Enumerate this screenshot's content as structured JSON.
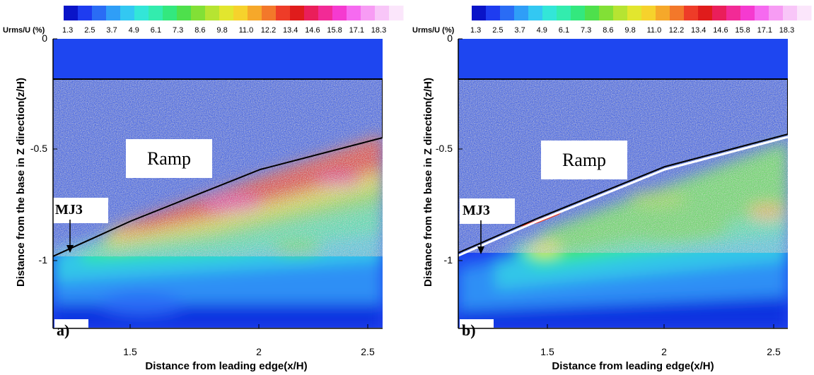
{
  "colorbar": {
    "label": "Urms/U (%)",
    "ticks": [
      "1.3",
      "2.5",
      "3.7",
      "4.9",
      "6.1",
      "7.3",
      "8.6",
      "9.8",
      "11.0",
      "12.2",
      "13.4",
      "14.6",
      "15.8",
      "17.1",
      "18.3"
    ],
    "colors": [
      "#0a14c8",
      "#1e3cf0",
      "#2a6cf5",
      "#2f9ef7",
      "#33c8f2",
      "#33e6d8",
      "#33ecae",
      "#33e87e",
      "#4ee04c",
      "#82e036",
      "#b6e432",
      "#e2e62e",
      "#f6d22c",
      "#f6a82a",
      "#f3782a",
      "#ee3c28",
      "#e01c1c",
      "#ea1e5a",
      "#f22a96",
      "#f53ad0",
      "#f66af0",
      "#f79cf4",
      "#f8c6f8",
      "#fbe6fb"
    ]
  },
  "panels": [
    {
      "tag": "a)",
      "ramp_label": "Ramp",
      "marker_label": "MJ3"
    },
    {
      "tag": "b)",
      "ramp_label": "Ramp",
      "marker_label": "MJ3"
    }
  ],
  "chart_data": [
    {
      "type": "heatmap",
      "quantity": "Urms/U (%)",
      "xlabel": "Distance from leading edge(x/H)",
      "ylabel": "Distance from the base in Z direction(z/H)",
      "xlim": [
        1.1,
        2.55
      ],
      "ylim": [
        -1.4,
        0
      ],
      "xticks": [
        "1.5",
        "2",
        "2.5"
      ],
      "yticks": [
        "0",
        "-0.5",
        "-1"
      ],
      "clim": [
        1.3,
        18.3
      ],
      "ramp_surface": {
        "x": [
          1.1,
          1.5,
          2.0,
          2.55
        ],
        "z": [
          -0.98,
          -0.8,
          -0.58,
          -0.44
        ]
      },
      "annotations": [
        "Ramp",
        "MJ3",
        "a)"
      ],
      "features": {
        "shear_layer_peak": 15.8,
        "shear_layer_z_below_surface": 0.12,
        "outer_flow_level": 1.3
      }
    },
    {
      "type": "heatmap",
      "quantity": "Urms/U (%)",
      "xlabel": "Distance from leading edge(x/H)",
      "ylabel": "Distance from the base in Z direction(z/H)",
      "xlim": [
        1.1,
        2.55
      ],
      "ylim": [
        -1.4,
        0
      ],
      "xticks": [
        "1.5",
        "2",
        "2.5"
      ],
      "yticks": [
        "0",
        "-0.5",
        "-1"
      ],
      "clim": [
        1.3,
        18.3
      ],
      "ramp_surface": {
        "x": [
          1.1,
          1.5,
          2.0,
          2.55
        ],
        "z": [
          -0.96,
          -0.79,
          -0.57,
          -0.44
        ]
      },
      "annotations": [
        "Ramp",
        "MJ3",
        "b)"
      ],
      "features": {
        "shear_layer_peak": 11.0,
        "shear_layer_z_below_surface": 0.2,
        "outer_flow_level": 1.3
      }
    }
  ]
}
